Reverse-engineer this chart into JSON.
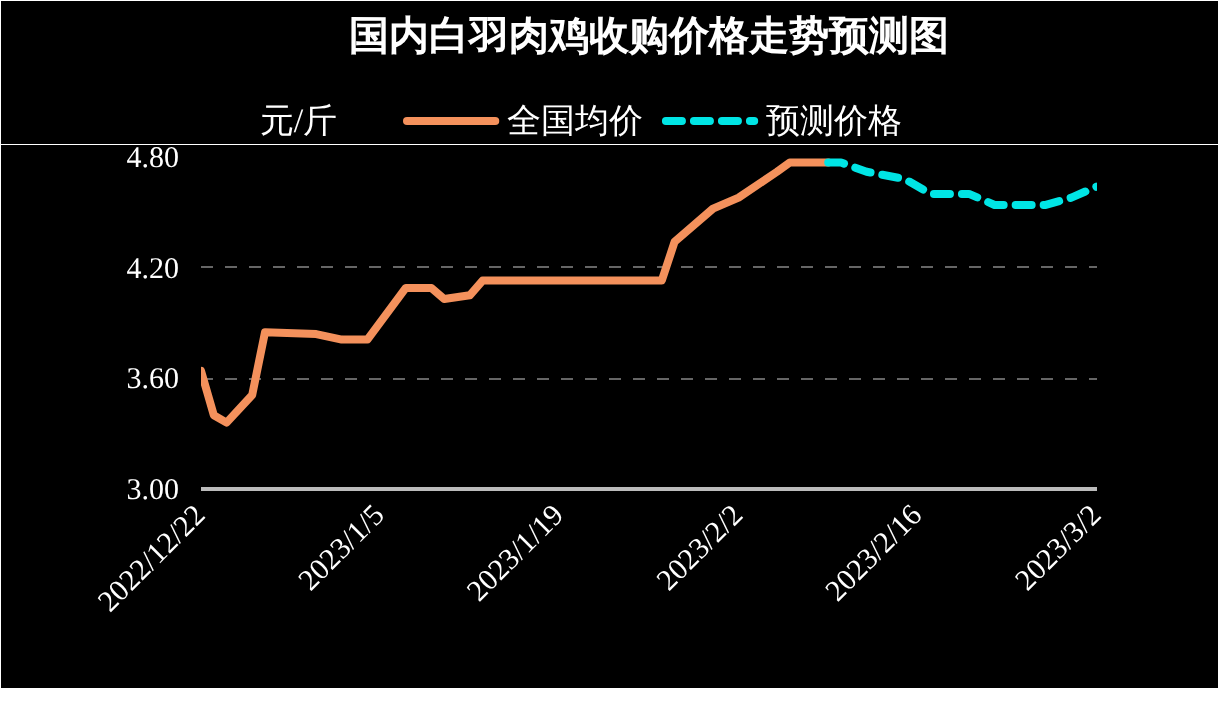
{
  "chart_data": {
    "type": "line",
    "title": "国内白羽肉鸡收购价格走势预测图",
    "ylabel": "元/斤",
    "xlim": [
      "2022-12-22",
      "2023-03-02"
    ],
    "xticks": [
      {
        "value": "2022-12-22",
        "label": "2022/12/22"
      },
      {
        "value": "2023-01-05",
        "label": "2023/1/5"
      },
      {
        "value": "2023-01-19",
        "label": "2023/1/19"
      },
      {
        "value": "2023-02-02",
        "label": "2023/2/2"
      },
      {
        "value": "2023-02-16",
        "label": "2023/2/16"
      },
      {
        "value": "2023-03-02",
        "label": "2023/3/2"
      }
    ],
    "ylim": [
      3.0,
      4.8
    ],
    "yticks": [
      {
        "value": 3.0,
        "label": "3.00"
      },
      {
        "value": 3.6,
        "label": "3.60"
      },
      {
        "value": 4.2,
        "label": "4.20"
      },
      {
        "value": 4.8,
        "label": "4.80"
      }
    ],
    "grid": "y",
    "legend": "top",
    "series": [
      {
        "name": "全国均价",
        "color": "#f4915c",
        "line_style": "solid",
        "x": [
          "2022-12-22",
          "2022-12-23",
          "2022-12-24",
          "2022-12-26",
          "2022-12-27",
          "2022-12-31",
          "2023-01-02",
          "2023-01-04",
          "2023-01-07",
          "2023-01-09",
          "2023-01-10",
          "2023-01-12",
          "2023-01-13",
          "2023-01-27",
          "2023-01-28",
          "2023-01-31",
          "2023-02-02",
          "2023-02-05",
          "2023-02-06",
          "2023-02-09"
        ],
        "values": [
          3.64,
          3.4,
          3.36,
          3.51,
          3.85,
          3.84,
          3.81,
          3.81,
          4.09,
          4.09,
          4.03,
          4.05,
          4.13,
          4.13,
          4.34,
          4.52,
          4.58,
          4.72,
          4.77,
          4.77
        ]
      },
      {
        "name": "预测价格",
        "color": "#00e5e5",
        "line_style": "dashed",
        "x": [
          "2023-02-09",
          "2023-02-10",
          "2023-02-12",
          "2023-02-15",
          "2023-02-17",
          "2023-02-20",
          "2023-02-22",
          "2023-02-26",
          "2023-02-28",
          "2023-03-02"
        ],
        "values": [
          4.77,
          4.77,
          4.72,
          4.68,
          4.6,
          4.6,
          4.54,
          4.54,
          4.58,
          4.64
        ]
      }
    ]
  }
}
